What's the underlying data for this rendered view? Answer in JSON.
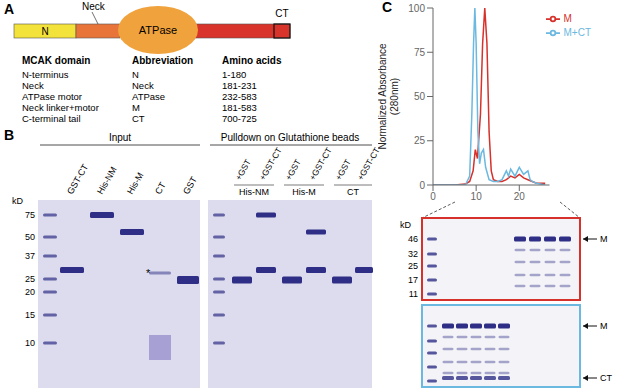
{
  "figure": {
    "panels": [
      {
        "label": "A",
        "protein_diagram": {
          "segments": [
            "N",
            "Neck",
            "ATPase",
            "CT"
          ]
        },
        "table": {
          "header": [
            "MCAK domain",
            "Abbreviation",
            "Amino acids"
          ],
          "rows": [
            [
              "N-terminus",
              "N",
              "1-180"
            ],
            [
              "Neck",
              "Neck",
              "181-231"
            ],
            [
              "ATPase motor",
              "ATPase",
              "232-583"
            ],
            [
              "Neck linker+motor",
              "M",
              "181-583"
            ],
            [
              "C-terminal tail",
              "CT",
              "700-725"
            ]
          ]
        }
      },
      {
        "label": "B",
        "gel_titles": [
          "Input",
          "Pulldown on Glutathione beads"
        ],
        "size_unit": "kD",
        "markers": [
          75,
          50,
          37,
          25,
          20,
          15,
          10
        ],
        "input_lanes": [
          "GST-CT",
          "His-NM",
          "His-M",
          "CT",
          "GST"
        ],
        "input_note": "*",
        "pulldown_lanes": [
          "+GST",
          "+GST-CT",
          "+GST",
          "+GST-CT",
          "+GST",
          "+GST-CT"
        ],
        "pulldown_groups": [
          "His-NM",
          "His-M",
          "CT"
        ]
      },
      {
        "label": "C",
        "size_unit": "kD",
        "gel_markers": [
          46,
          32,
          25,
          17,
          11
        ],
        "gels": [
          {
            "series": 0,
            "bands": [
              "M"
            ]
          },
          {
            "series": 1,
            "bands": [
              "M",
              "CT"
            ]
          }
        ]
      }
    ]
  },
  "chart_data": {
    "type": "line",
    "y_label": [
      "Normalized Absorbance",
      "(280nm)"
    ],
    "xlim": [
      0,
      27
    ],
    "xticks": [
      0,
      10,
      20
    ],
    "ylim": [
      0,
      100
    ],
    "yticks": [
      0,
      25,
      50,
      75,
      100
    ],
    "grid": false,
    "legend": "top-right",
    "series": [
      {
        "name": "M",
        "color": "#d7312b",
        "x": [
          0,
          5,
          7.5,
          8.5,
          9.3,
          9.8,
          10.3,
          11,
          11.5,
          12,
          12.5,
          13,
          13.5,
          14,
          15,
          16,
          17,
          18,
          19,
          20,
          21,
          22,
          23,
          24,
          25,
          26
        ],
        "values": [
          0,
          0,
          0.5,
          2,
          8,
          20,
          15,
          40,
          80,
          100,
          80,
          30,
          8,
          3,
          2,
          2,
          3,
          5,
          4,
          6,
          4,
          3,
          2,
          1,
          1,
          1
        ]
      },
      {
        "name": "M+CT",
        "color": "#6bb8e0",
        "x": [
          0,
          7.5,
          8.5,
          9,
          9.4,
          9.7,
          10,
          10.4,
          10.8,
          11.2,
          11.7,
          12.2,
          13,
          14,
          15,
          16,
          17,
          17.5,
          18,
          19,
          20,
          21,
          22,
          22.5,
          23,
          24,
          26
        ],
        "values": [
          0,
          0,
          5,
          40,
          80,
          100,
          80,
          30,
          12,
          18,
          20,
          10,
          3,
          2,
          2,
          3,
          8,
          5,
          9,
          5,
          10,
          6,
          8,
          3,
          2,
          1,
          0
        ]
      }
    ]
  }
}
